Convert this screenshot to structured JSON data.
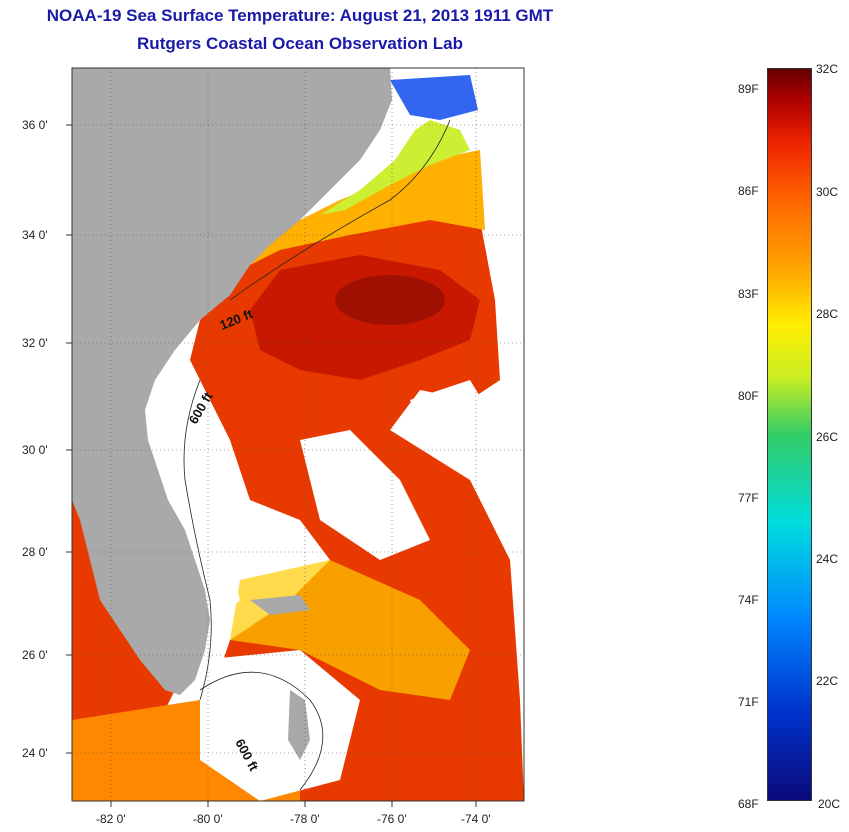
{
  "title": {
    "line1": "NOAA-19 Sea Surface Temperature:  August 21, 2013 1911 GMT",
    "line2": "Rutgers Coastal Ocean Observation Lab"
  },
  "map": {
    "lat_labels": [
      "36 0'",
      "34 0'",
      "32 0'",
      "30 0'",
      "28 0'",
      "26 0'",
      "24 0'"
    ],
    "lon_labels": [
      "-82 0'",
      "-80 0'",
      "-78 0'",
      "-76 0'",
      "-74 0'"
    ],
    "contour_labels": [
      "120 ft",
      "600 ft",
      "600 ft"
    ],
    "colors": {
      "land": "#a9a9a9",
      "cloud": "#ffffff",
      "warm": "#ee3300",
      "hot": "#bb1100",
      "mild": "#ff9900"
    }
  },
  "colorbar": {
    "fahrenheit": [
      "89F",
      "86F",
      "83F",
      "80F",
      "77F",
      "74F",
      "71F",
      "68F"
    ],
    "celsius": [
      "32C",
      "30C",
      "28C",
      "26C",
      "24C",
      "22C",
      "20C"
    ]
  }
}
